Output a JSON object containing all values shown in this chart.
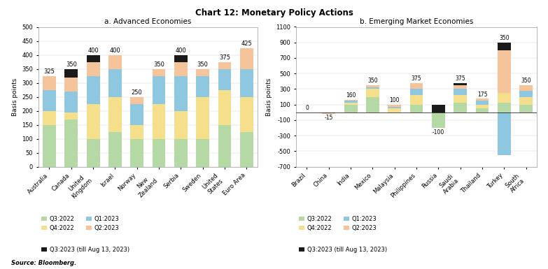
{
  "title": "Chart 12: Monetary Policy Actions",
  "subtitle_a": "a. Advanced Economies",
  "subtitle_b": "b. Emerging Market Economies",
  "source": "Source: Bloomberg.",
  "colors": {
    "Q3_2022": "#b5d9a5",
    "Q4_2022": "#f5df8a",
    "Q1_2023": "#8dc8e0",
    "Q2_2023": "#f5c49a",
    "Q3_2023": "#1a1a1a"
  },
  "advanced": {
    "categories": [
      "Australia",
      "Canada",
      "United\nKingdom",
      "Israel",
      "Norway",
      "New\nZealand",
      "Serbia",
      "Sweden",
      "United\nStates",
      "Euro Area"
    ],
    "totals": [
      325,
      350,
      400,
      400,
      250,
      350,
      400,
      350,
      375,
      425
    ],
    "Q3_2022": [
      150,
      170,
      100,
      125,
      100,
      100,
      100,
      100,
      150,
      125
    ],
    "Q4_2022": [
      50,
      25,
      125,
      125,
      50,
      125,
      100,
      150,
      125,
      125
    ],
    "Q1_2023": [
      75,
      75,
      100,
      100,
      75,
      100,
      125,
      75,
      75,
      100
    ],
    "Q2_2023": [
      50,
      50,
      50,
      50,
      25,
      25,
      50,
      25,
      25,
      75
    ],
    "Q3_2023": [
      0,
      30,
      25,
      0,
      0,
      0,
      25,
      0,
      0,
      0
    ],
    "ylim": [
      0,
      500
    ],
    "yticks": [
      0,
      50,
      100,
      150,
      200,
      250,
      300,
      350,
      400,
      450,
      500
    ]
  },
  "emerging": {
    "categories": [
      "Brazil",
      "China",
      "India",
      "Mexico",
      "Malaysia",
      "Philippines",
      "Russia",
      "Saudi\nArabia",
      "Thailand",
      "Turkey",
      "South\nAfrica"
    ],
    "totals": [
      0,
      -15,
      160,
      350,
      100,
      375,
      -100,
      375,
      175,
      350,
      350
    ],
    "Q3_2022": [
      0,
      0,
      100,
      200,
      0,
      100,
      -200,
      125,
      50,
      125,
      100
    ],
    "Q4_2022": [
      0,
      0,
      25,
      100,
      50,
      125,
      0,
      100,
      50,
      125,
      100
    ],
    "Q1_2023": [
      0,
      0,
      25,
      25,
      25,
      75,
      0,
      75,
      50,
      -550,
      75
    ],
    "Q2_2023": [
      0,
      -15,
      10,
      25,
      25,
      75,
      0,
      50,
      25,
      550,
      75
    ],
    "Q3_2023": [
      0,
      0,
      0,
      0,
      0,
      0,
      100,
      25,
      0,
      100,
      0
    ],
    "ylim": [
      -700,
      1100
    ],
    "yticks": [
      -700,
      -500,
      -300,
      -100,
      100,
      300,
      500,
      700,
      900,
      1100
    ]
  },
  "quarter_keys": [
    "Q3_2022",
    "Q4_2022",
    "Q1_2023",
    "Q2_2023",
    "Q3_2023"
  ],
  "legend_labels": [
    "Q3:2022",
    "Q4:2022",
    "Q1:2023",
    "Q2:2023",
    "Q3:2023 (till Aug 13, 2023)"
  ]
}
